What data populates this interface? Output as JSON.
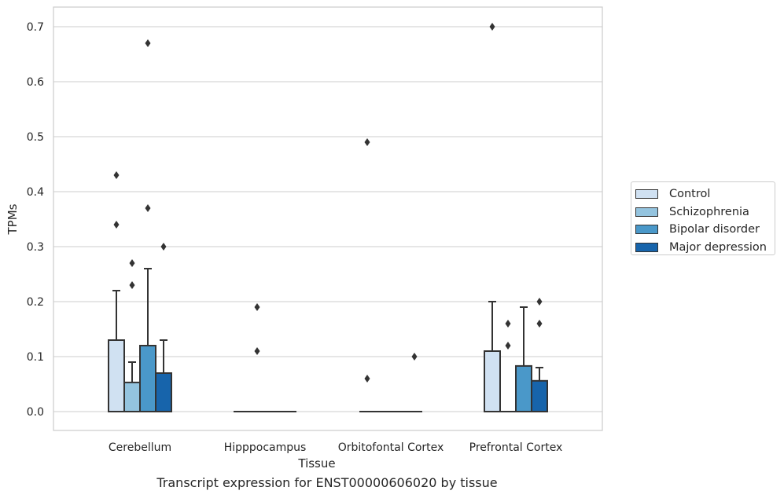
{
  "chart_data": {
    "type": "box",
    "title": "Transcript expression for ENST00000606020 by tissue",
    "xlabel": "Tissue",
    "ylabel": "TPMs",
    "ylim": [
      -0.035,
      0.735
    ],
    "yticks": [
      0.0,
      0.1,
      0.2,
      0.3,
      0.4,
      0.5,
      0.6,
      0.7
    ],
    "ytick_labels": [
      "0.0",
      "0.1",
      "0.2",
      "0.3",
      "0.4",
      "0.5",
      "0.6",
      "0.7"
    ],
    "categories": [
      "Cerebellum",
      "Hipppocampus",
      "Orbitofontal Cortex",
      "Prefrontal Cortex"
    ],
    "grid": "horizontal",
    "legend_position": "right",
    "series": [
      {
        "name": "Control",
        "color": "#d0e1f2",
        "boxes": [
          {
            "q1": 0.0,
            "median": 0.0,
            "q3": 0.13,
            "whisker_low": 0.0,
            "whisker_high": 0.22,
            "fliers": [
              0.43,
              0.34
            ]
          },
          {
            "q1": 0.0,
            "median": 0.0,
            "q3": 0.0,
            "whisker_low": 0.0,
            "whisker_high": 0.0,
            "fliers": []
          },
          {
            "q1": 0.0,
            "median": 0.0,
            "q3": 0.0,
            "whisker_low": 0.0,
            "whisker_high": 0.0,
            "fliers": [
              0.49,
              0.06
            ]
          },
          {
            "q1": 0.0,
            "median": 0.0,
            "q3": 0.11,
            "whisker_low": 0.0,
            "whisker_high": 0.2,
            "fliers": [
              0.7
            ]
          }
        ]
      },
      {
        "name": "Schizophrenia",
        "color": "#94c4df",
        "boxes": [
          {
            "q1": 0.0,
            "median": 0.0,
            "q3": 0.053,
            "whisker_low": 0.0,
            "whisker_high": 0.09,
            "fliers": [
              0.27,
              0.23
            ]
          },
          {
            "q1": 0.0,
            "median": 0.0,
            "q3": 0.0,
            "whisker_low": 0.0,
            "whisker_high": 0.0,
            "fliers": [
              0.19,
              0.11
            ]
          },
          {
            "q1": 0.0,
            "median": 0.0,
            "q3": 0.0,
            "whisker_low": 0.0,
            "whisker_high": 0.0,
            "fliers": []
          },
          {
            "q1": 0.0,
            "median": 0.0,
            "q3": 0.0,
            "whisker_low": 0.0,
            "whisker_high": 0.0,
            "fliers": [
              0.16,
              0.12
            ]
          }
        ]
      },
      {
        "name": "Bipolar disorder",
        "color": "#4a98c9",
        "boxes": [
          {
            "q1": 0.0,
            "median": 0.0,
            "q3": 0.12,
            "whisker_low": 0.0,
            "whisker_high": 0.26,
            "fliers": [
              0.67,
              0.37
            ]
          },
          {
            "q1": 0.0,
            "median": 0.0,
            "q3": 0.0,
            "whisker_low": 0.0,
            "whisker_high": 0.0,
            "fliers": []
          },
          {
            "q1": 0.0,
            "median": 0.0,
            "q3": 0.0,
            "whisker_low": 0.0,
            "whisker_high": 0.0,
            "fliers": []
          },
          {
            "q1": 0.0,
            "median": 0.0,
            "q3": 0.083,
            "whisker_low": 0.0,
            "whisker_high": 0.19,
            "fliers": []
          }
        ]
      },
      {
        "name": "Major depression",
        "color": "#1764ab",
        "boxes": [
          {
            "q1": 0.0,
            "median": 0.0,
            "q3": 0.07,
            "whisker_low": 0.0,
            "whisker_high": 0.13,
            "fliers": [
              0.3
            ]
          },
          {
            "q1": 0.0,
            "median": 0.0,
            "q3": 0.0,
            "whisker_low": 0.0,
            "whisker_high": 0.0,
            "fliers": []
          },
          {
            "q1": 0.0,
            "median": 0.0,
            "q3": 0.0,
            "whisker_low": 0.0,
            "whisker_high": 0.0,
            "fliers": [
              0.1
            ]
          },
          {
            "q1": 0.0,
            "median": 0.0,
            "q3": 0.056,
            "whisker_low": 0.0,
            "whisker_high": 0.08,
            "fliers": [
              0.2,
              0.16
            ]
          }
        ]
      }
    ]
  }
}
